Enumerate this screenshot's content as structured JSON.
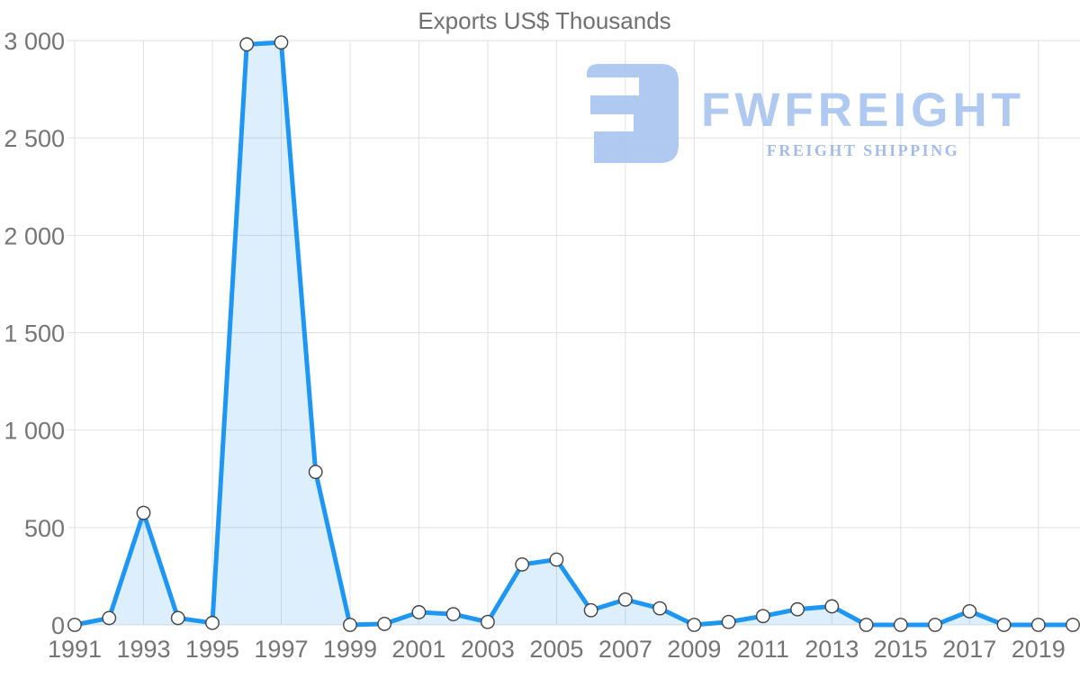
{
  "title": "Exports US$ Thousands",
  "watermark": {
    "brand": "FWFREIGHT",
    "tagline": "FREIGHT SHIPPING"
  },
  "colors": {
    "line": "#1e96f3",
    "area_fill": "rgba(30,150,243,0.15)",
    "marker_fill": "#ffffff",
    "marker_stroke": "#424242",
    "grid": "#e0e0e0",
    "axis_text": "#757575",
    "title_text": "#707070",
    "logo": "#a9c5f0",
    "logo_tagline": "#9db7e8"
  },
  "chart_data": {
    "type": "area",
    "title": "Exports US$ Thousands",
    "xlabel": "",
    "ylabel": "",
    "x": [
      1991,
      1992,
      1993,
      1994,
      1995,
      1996,
      1997,
      1998,
      1999,
      2000,
      2001,
      2002,
      2003,
      2004,
      2005,
      2006,
      2007,
      2008,
      2009,
      2010,
      2011,
      2012,
      2013,
      2014,
      2015,
      2016,
      2017,
      2018,
      2019,
      2020
    ],
    "values": [
      0,
      35,
      575,
      35,
      10,
      2980,
      2990,
      785,
      0,
      5,
      65,
      55,
      15,
      310,
      335,
      75,
      130,
      85,
      0,
      15,
      45,
      80,
      95,
      0,
      0,
      0,
      70,
      0,
      0,
      0
    ],
    "series_name": "Exports US$ Thousands",
    "ylim": [
      0,
      3000
    ],
    "yticks": [
      0,
      500,
      1000,
      1500,
      2000,
      2500,
      3000
    ],
    "ytick_labels": [
      "0",
      "500",
      "1 000",
      "1 500",
      "2 000",
      "2 500",
      "3 000"
    ],
    "xticks": [
      1991,
      1993,
      1995,
      1997,
      1999,
      2001,
      2003,
      2005,
      2007,
      2009,
      2011,
      2013,
      2015,
      2017,
      2019
    ],
    "grid": true,
    "legend": false,
    "marker": "circle"
  }
}
